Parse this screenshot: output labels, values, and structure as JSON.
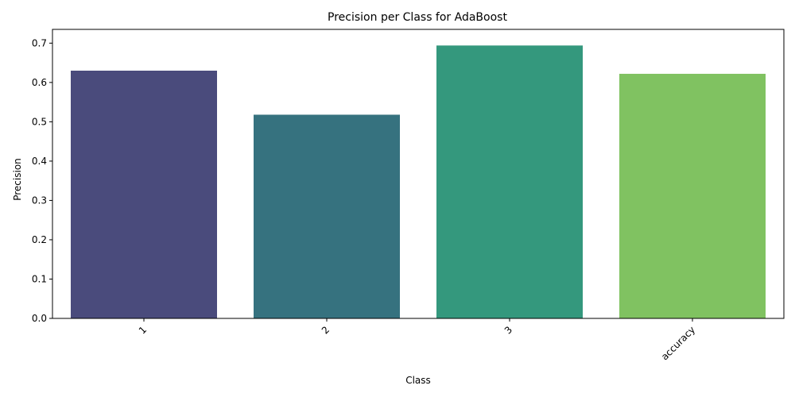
{
  "chart_data": {
    "type": "bar",
    "title": "Precision per Class for AdaBoost",
    "xlabel": "Class",
    "ylabel": "Precision",
    "categories": [
      "1",
      "2",
      "3",
      "accuracy"
    ],
    "values": [
      0.63,
      0.518,
      0.694,
      0.622
    ],
    "colors": [
      "#4a4b7c",
      "#36727f",
      "#34987d",
      "#80c261"
    ],
    "ylim": [
      0,
      0.735
    ],
    "yticks": [
      "0.0",
      "0.1",
      "0.2",
      "0.3",
      "0.4",
      "0.5",
      "0.6",
      "0.7"
    ],
    "grid": false,
    "legend": "none",
    "x_tick_rotation": "45"
  }
}
